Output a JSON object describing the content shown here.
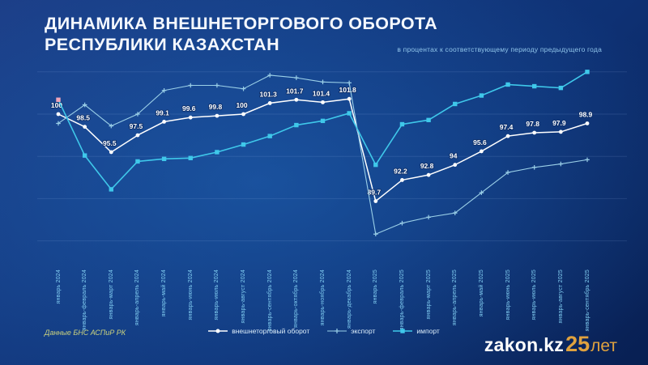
{
  "header": {
    "title_line1": "ДИНАМИКА ВНЕШНЕТОРГОВОГО ОБОРОТА",
    "title_line2": "РЕСПУБЛИКИ КАЗАХСТАН",
    "subtitle": "в процентах к соответствующему периоду предыдущего года"
  },
  "footer": {
    "source": "Данные БНС АСПиР РК",
    "logo_text": "zakon.kz",
    "logo_number": "25",
    "logo_suffix": "лет"
  },
  "colors": {
    "turnover": "#ffffff",
    "export": "#9bd0e8",
    "import": "#3fc8ea",
    "import_first_marker": "#f0a4b8",
    "accent_gold": "#e0a23e",
    "tick_label": "#82cef2",
    "source_text": "#cdd47e",
    "background_deep": "#0a2a66"
  },
  "chart_data": {
    "type": "line",
    "title": "Динамика внешнеторгового оборота Республики Казахстан",
    "subtitle": "в процентах к соответствующему периоду предыдущего года",
    "xlabel": "",
    "ylabel": "",
    "ylim": [
      84,
      107
    ],
    "gridlines": [
      85,
      90,
      95,
      100,
      105
    ],
    "grid": "faint horizontal only",
    "legend_position": "bottom",
    "categories": [
      "январь 2024",
      "январь-февраль 2024",
      "январь-март 2024",
      "январь-апрель 2024",
      "январь-май 2024",
      "январь-июнь 2024",
      "январь-июль 2024",
      "январь-август 2024",
      "январь-сентябрь 2024",
      "январь-октябрь 2024",
      "январь-ноябрь 2024",
      "январь-декабрь 2024",
      "январь 2025",
      "январь-февраль 2025",
      "январь-март 2025",
      "январь-апрель 2025",
      "январь-май 2025",
      "январь-июнь 2025",
      "январь-июль 2025",
      "январь-август 2025",
      "январь-сентябрь 2025"
    ],
    "series": [
      {
        "name": "внешнеторговый оборот",
        "color": "#ffffff",
        "marker": "circle",
        "show_labels": true,
        "values": [
          100,
          98.5,
          95.5,
          97.5,
          99.1,
          99.6,
          99.8,
          100,
          101.3,
          101.7,
          101.4,
          101.8,
          89.7,
          92.2,
          92.8,
          94,
          95.6,
          97.4,
          97.8,
          97.9,
          98.9
        ]
      },
      {
        "name": "экспорт",
        "color": "#9bd0e8",
        "marker": "plus",
        "show_labels": false,
        "values": [
          98.9,
          101.1,
          98.6,
          100,
          102.8,
          103.4,
          103.4,
          103,
          104.6,
          104.3,
          103.8,
          103.7,
          85.8,
          87.1,
          87.8,
          88.3,
          90.7,
          93.1,
          93.7,
          94.1,
          94.6
        ]
      },
      {
        "name": "импорт",
        "color": "#3fc8ea",
        "marker": "square",
        "show_labels": false,
        "first_marker_color": "#f0a4b8",
        "values": [
          101.7,
          95.1,
          91.1,
          94.4,
          94.7,
          94.8,
          95.5,
          96.4,
          97.4,
          98.7,
          99.2,
          100.1,
          94,
          98.8,
          99.3,
          101.2,
          102.2,
          103.5,
          103.3,
          103.1,
          105
        ]
      }
    ]
  }
}
